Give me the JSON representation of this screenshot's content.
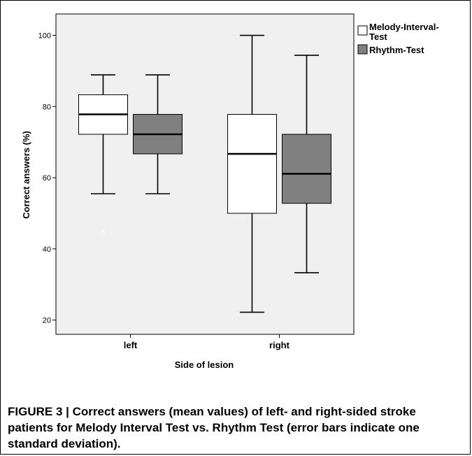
{
  "chart_data": {
    "type": "boxplot",
    "xlabel": "Side of lesion",
    "ylabel": "Correct answers (%)",
    "ylim": [
      16,
      106
    ],
    "yticks": [
      20,
      40,
      60,
      80,
      100
    ],
    "categories": [
      "left",
      "right"
    ],
    "legend": {
      "position": "top-right"
    },
    "series": [
      {
        "name": "Melody-Interval-Test",
        "color": "#ffffff",
        "boxes": [
          {
            "category": "left",
            "min": 55.5,
            "q1": 72.2,
            "median": 77.8,
            "q3": 83.3,
            "max": 88.9,
            "outliers": [
              44.5
            ]
          },
          {
            "category": "right",
            "min": 22.2,
            "q1": 50.0,
            "median": 66.7,
            "q3": 77.8,
            "max": 100.0,
            "outliers": []
          }
        ]
      },
      {
        "name": "Rhythm-Test",
        "color": "#808080",
        "boxes": [
          {
            "category": "left",
            "min": 55.5,
            "q1": 66.7,
            "median": 72.2,
            "q3": 77.8,
            "max": 88.9,
            "outliers": []
          },
          {
            "category": "right",
            "min": 33.3,
            "q1": 52.8,
            "median": 61.1,
            "q3": 72.2,
            "max": 94.4,
            "outliers": []
          }
        ]
      }
    ]
  },
  "legend_labels": {
    "melody_line1": "Melody-Interval-",
    "melody_line2": "Test",
    "rhythm": "Rhythm-Test"
  },
  "caption": "FIGURE 3 | Correct answers (mean values) of left- and right-sided stroke patients for Melody Interval Test vs. Rhythm Test (error bars indicate one standard deviation)."
}
